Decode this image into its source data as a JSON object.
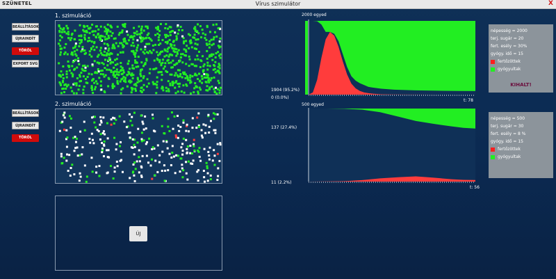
{
  "window": {
    "pause_label": "SZÜNETEL",
    "title": "Vírus szimulátor",
    "close_label": "X"
  },
  "sim1": {
    "label": "1. szimuláció",
    "buttons": {
      "settings": "BEÁLLÍTÁSOK",
      "restart": "ÚJRAINDÍT",
      "delete": "TÖRÖL",
      "export": "EXPORT SVG"
    },
    "chart_header": "2000 egyed",
    "y_top_label": "1904 (95.2%)",
    "y_bottom_label": "0    (0.0%)",
    "t_label": "t: 78",
    "info": {
      "population": "népesség =   2000",
      "radius": "terj. sugár = 20",
      "chance": "fert. esély = 30%",
      "heal_time": "gyógy. idő = 15",
      "legend_infected": "fertőzöttek",
      "legend_healed": "gyógyultak",
      "status": "KIHALT!"
    }
  },
  "sim2": {
    "label": "2. szimuláció",
    "buttons": {
      "settings": "BEÁLLÍTÁSOK",
      "restart": "ÚJRAINDÍT",
      "delete": "TÖRÖL"
    },
    "chart_header": "500 egyed",
    "y_top_label": "137   (27.4%)",
    "y_bottom_label": "11     (2.2%)",
    "t_label": "t: 56",
    "info": {
      "population": "népesség =   500",
      "radius": "terj. sugár = 30",
      "chance": "fert. esély = 8   %",
      "heal_time": "gyógy. idő = 15",
      "legend_infected": "fertőzöttek",
      "legend_healed": "gyógyultak"
    }
  },
  "new_button": "ÚJ",
  "colors": {
    "infected": "#ff3c3c",
    "healed": "#22ee22",
    "healthy": "#ffffff",
    "susceptible_area": "#0f3057"
  },
  "chart_data": [
    {
      "type": "area",
      "title": "2000 egyed",
      "x": [
        0,
        2,
        4,
        6,
        8,
        10,
        12,
        14,
        16,
        18,
        20,
        22,
        24,
        26,
        28,
        30,
        34,
        40,
        50,
        60,
        70,
        78
      ],
      "series": [
        {
          "name": "fertőzöttek",
          "values": [
            0,
            60,
            400,
            1000,
            1500,
            1700,
            1600,
            1300,
            900,
            550,
            300,
            170,
            100,
            60,
            40,
            25,
            10,
            5,
            2,
            0,
            0,
            0
          ]
        },
        {
          "name": "gyógyultak",
          "values": [
            0,
            0,
            10,
            100,
            300,
            300,
            350,
            550,
            900,
            1250,
            1500,
            1620,
            1690,
            1740,
            1790,
            1810,
            1840,
            1865,
            1885,
            1895,
            1900,
            1904
          ]
        }
      ],
      "ylim": [
        0,
        2000
      ],
      "xlim": [
        0,
        78
      ]
    },
    {
      "type": "area",
      "title": "500 egyed",
      "x": [
        0,
        6,
        12,
        18,
        24,
        30,
        36,
        42,
        48,
        52,
        56
      ],
      "series": [
        {
          "name": "fertőzöttek",
          "values": [
            0,
            1,
            3,
            10,
            22,
            30,
            36,
            27,
            16,
            12,
            11
          ]
        },
        {
          "name": "gyógyultak",
          "values": [
            0,
            0,
            2,
            8,
            25,
            55,
            85,
            105,
            122,
            132,
            137
          ]
        }
      ],
      "ylim": [
        0,
        500
      ],
      "xlim": [
        0,
        56
      ]
    }
  ]
}
